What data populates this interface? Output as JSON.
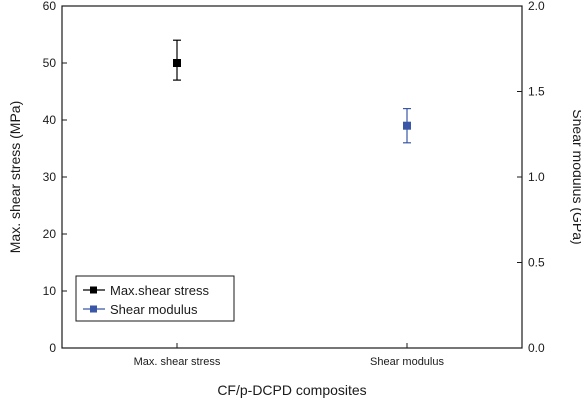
{
  "chart_data": {
    "type": "scatter",
    "categories": [
      "Max. shear stress",
      "Shear modulus"
    ],
    "series": [
      {
        "name": "Max.shear stress",
        "axis": "left",
        "category": "Max. shear stress",
        "value": 50,
        "error_low": 47,
        "error_high": 54,
        "color": "#000000",
        "marker": "square"
      },
      {
        "name": "Shear modulus",
        "axis": "right",
        "category": "Shear modulus",
        "value": 1.3,
        "error_low": 1.2,
        "error_high": 1.4,
        "color": "#3a56a6",
        "marker": "square"
      }
    ],
    "xlabel": "CF/p-DCPD composites",
    "ylabel_left": "Max. shear stress (MPa)",
    "ylabel_right": "Shear modulus (GPa)",
    "ylim_left": [
      0,
      60
    ],
    "yticks_left": [
      "0",
      "10",
      "20",
      "30",
      "40",
      "50",
      "60"
    ],
    "ylim_right": [
      0,
      2.0
    ],
    "yticks_right": [
      "0.0",
      "0.5",
      "1.0",
      "1.5",
      "2.0"
    ],
    "legend_position": "bottom-left",
    "grid": false
  }
}
